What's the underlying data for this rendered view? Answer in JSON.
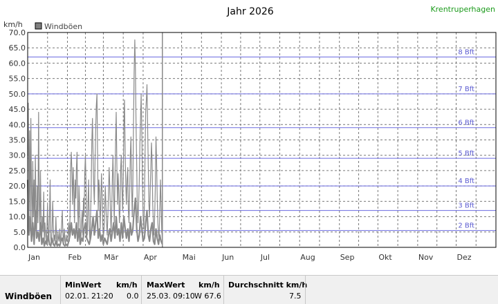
{
  "header": {
    "title": "Jahr 2026",
    "station": "Krentruperhagen"
  },
  "colors": {
    "series": "#8a8a8a",
    "bft_lines": "#6a6ae0",
    "grid": "#777777",
    "station": "#1a9a1a"
  },
  "chart_data": {
    "type": "line",
    "ylabel": "km/h",
    "ylim": [
      0,
      70
    ],
    "yticks": [
      "0.0",
      "5.0",
      "10.0",
      "15.0",
      "20.0",
      "25.0",
      "30.0",
      "35.0",
      "40.0",
      "45.0",
      "50.0",
      "55.0",
      "60.0",
      "65.0",
      "70.0"
    ],
    "months": [
      "Jan",
      "Feb",
      "Mär",
      "Apr",
      "Mai",
      "Jun",
      "Jul",
      "Aug",
      "Sep",
      "Okt",
      "Nov",
      "Dez"
    ],
    "grid": true,
    "legend": {
      "position": "top-left",
      "entries": [
        "Windböen"
      ]
    },
    "beaufort": [
      {
        "label": "2 Bft",
        "kmh": 5.5
      },
      {
        "label": "3 Bft",
        "kmh": 12
      },
      {
        "label": "4 Bft",
        "kmh": 20
      },
      {
        "label": "5 Bft",
        "kmh": 29
      },
      {
        "label": "6 Bft",
        "kmh": 39
      },
      {
        "label": "7 Bft",
        "kmh": 50
      },
      {
        "label": "8 Bft",
        "kmh": 62
      }
    ],
    "marker_day": 105,
    "series": [
      {
        "name": "Windböen",
        "gust_points": [
          [
            0,
            30
          ],
          [
            0.5,
            47
          ],
          [
            1,
            12
          ],
          [
            1.5,
            38
          ],
          [
            2,
            6
          ],
          [
            2.5,
            42
          ],
          [
            3,
            18
          ],
          [
            3.5,
            5
          ],
          [
            4,
            28
          ],
          [
            4.5,
            10
          ],
          [
            5,
            22
          ],
          [
            5.5,
            4
          ],
          [
            6,
            30
          ],
          [
            6.5,
            12
          ],
          [
            7,
            6
          ],
          [
            7.5,
            20
          ],
          [
            8,
            8
          ],
          [
            8.5,
            44
          ],
          [
            9,
            15
          ],
          [
            9.5,
            6
          ],
          [
            10,
            25
          ],
          [
            10.5,
            8
          ],
          [
            11,
            3
          ],
          [
            11.5,
            10
          ],
          [
            12,
            5
          ],
          [
            12.5,
            18
          ],
          [
            13,
            2
          ],
          [
            13.5,
            8
          ],
          [
            14,
            4
          ],
          [
            14.5,
            2
          ],
          [
            15,
            6
          ],
          [
            15.5,
            14
          ],
          [
            16,
            4
          ],
          [
            16.5,
            2
          ],
          [
            17,
            10
          ],
          [
            17.5,
            22
          ],
          [
            18,
            3
          ],
          [
            18.5,
            1
          ],
          [
            19,
            5
          ],
          [
            19.5,
            15
          ],
          [
            20,
            7
          ],
          [
            20.5,
            2
          ],
          [
            21,
            4
          ],
          [
            21.5,
            2
          ],
          [
            22,
            10
          ],
          [
            22.5,
            3
          ],
          [
            23,
            1
          ],
          [
            23.5,
            5
          ],
          [
            24,
            3
          ],
          [
            24.5,
            2
          ],
          [
            25,
            6
          ],
          [
            25.5,
            1
          ],
          [
            26,
            3
          ],
          [
            26.5,
            8
          ],
          [
            27,
            12
          ],
          [
            27.5,
            4
          ],
          [
            28,
            2
          ],
          [
            28.5,
            6
          ],
          [
            29,
            2
          ],
          [
            29.5,
            1
          ],
          [
            30,
            4
          ],
          [
            30.5,
            2
          ],
          [
            31,
            2
          ],
          [
            31.5,
            4
          ],
          [
            32,
            8
          ],
          [
            32.5,
            2
          ],
          [
            33,
            10
          ],
          [
            33.5,
            26
          ],
          [
            34,
            31
          ],
          [
            34.5,
            24
          ],
          [
            35,
            14
          ],
          [
            35.5,
            26
          ],
          [
            36,
            18
          ],
          [
            36.5,
            8
          ],
          [
            37,
            22
          ],
          [
            37.5,
            16
          ],
          [
            38,
            26
          ],
          [
            38.5,
            31
          ],
          [
            39,
            12
          ],
          [
            39.5,
            6
          ],
          [
            40,
            20
          ],
          [
            40.5,
            14
          ],
          [
            41,
            5
          ],
          [
            41.5,
            3
          ],
          [
            42,
            8
          ],
          [
            42.5,
            12
          ],
          [
            43,
            4
          ],
          [
            43.5,
            16
          ],
          [
            44,
            10
          ],
          [
            44.5,
            24
          ],
          [
            45,
            30
          ],
          [
            45.5,
            20
          ],
          [
            46,
            8
          ],
          [
            46.5,
            4
          ],
          [
            47,
            14
          ],
          [
            47.5,
            22
          ],
          [
            48,
            6
          ],
          [
            48.5,
            2
          ],
          [
            49,
            10
          ],
          [
            49.5,
            18
          ],
          [
            50,
            34
          ],
          [
            50.5,
            42
          ],
          [
            51,
            30
          ],
          [
            51.5,
            20
          ],
          [
            52,
            14
          ],
          [
            52.5,
            28
          ],
          [
            53,
            38
          ],
          [
            53.5,
            46
          ],
          [
            54,
            50
          ],
          [
            54.5,
            30
          ],
          [
            55,
            12
          ],
          [
            55.5,
            22
          ],
          [
            56,
            18
          ],
          [
            56.5,
            6
          ],
          [
            57,
            14
          ],
          [
            57.5,
            24
          ],
          [
            58,
            18
          ],
          [
            58.5,
            8
          ],
          [
            59,
            3
          ],
          [
            59.5,
            6
          ],
          [
            60,
            12
          ],
          [
            60.5,
            20
          ],
          [
            61,
            14
          ],
          [
            61.5,
            8
          ],
          [
            62,
            4
          ],
          [
            62.5,
            10
          ],
          [
            63,
            18
          ],
          [
            63.5,
            26
          ],
          [
            64,
            20
          ],
          [
            64.5,
            12
          ],
          [
            65,
            5
          ],
          [
            65.5,
            12
          ],
          [
            66,
            22
          ],
          [
            66.5,
            30
          ],
          [
            67,
            18
          ],
          [
            67.5,
            8
          ],
          [
            68,
            20
          ],
          [
            68.5,
            34
          ],
          [
            69,
            44
          ],
          [
            69.5,
            28
          ],
          [
            70,
            14
          ],
          [
            70.5,
            24
          ],
          [
            71,
            18
          ],
          [
            71.5,
            8
          ],
          [
            72,
            12
          ],
          [
            72.5,
            26
          ],
          [
            73,
            30
          ],
          [
            73.5,
            20
          ],
          [
            74,
            12
          ],
          [
            74.5,
            22
          ],
          [
            75,
            40
          ],
          [
            75.5,
            48
          ],
          [
            76,
            30
          ],
          [
            76.5,
            20
          ],
          [
            77,
            14
          ],
          [
            77.5,
            22
          ],
          [
            78,
            26
          ],
          [
            78.5,
            12
          ],
          [
            79,
            8
          ],
          [
            79.5,
            18
          ],
          [
            80,
            30
          ],
          [
            80.5,
            36
          ],
          [
            81,
            22
          ],
          [
            81.5,
            10
          ],
          [
            82,
            20
          ],
          [
            82.5,
            40
          ],
          [
            83,
            57
          ],
          [
            83.5,
            67.6
          ],
          [
            84,
            58
          ],
          [
            84.5,
            40
          ],
          [
            85,
            26
          ],
          [
            85.5,
            12
          ],
          [
            86,
            8
          ],
          [
            86.5,
            14
          ],
          [
            87,
            22
          ],
          [
            87.5,
            34
          ],
          [
            88,
            42
          ],
          [
            88.5,
            50
          ],
          [
            89,
            36
          ],
          [
            89.5,
            20
          ],
          [
            90,
            10
          ],
          [
            90.5,
            6
          ],
          [
            91,
            14
          ],
          [
            91.5,
            30
          ],
          [
            92,
            44
          ],
          [
            92.5,
            48
          ],
          [
            93,
            53
          ],
          [
            93.5,
            40
          ],
          [
            94,
            26
          ],
          [
            94.5,
            14
          ],
          [
            95,
            10
          ],
          [
            95.5,
            18
          ],
          [
            96,
            26
          ],
          [
            96.5,
            34
          ],
          [
            97,
            28
          ],
          [
            97.5,
            14
          ],
          [
            98,
            8
          ],
          [
            98.5,
            4
          ],
          [
            99,
            10
          ],
          [
            99.5,
            20
          ],
          [
            100,
            36
          ],
          [
            100.5,
            28
          ],
          [
            101,
            16
          ],
          [
            101.5,
            8
          ],
          [
            102,
            4
          ],
          [
            102.5,
            3
          ],
          [
            103,
            12
          ],
          [
            103.5,
            22
          ],
          [
            104,
            14
          ],
          [
            104.5,
            6
          ],
          [
            105,
            2
          ]
        ],
        "base_points": [
          [
            0,
            22
          ],
          [
            1,
            4
          ],
          [
            2,
            10
          ],
          [
            3,
            2
          ],
          [
            4,
            8
          ],
          [
            5,
            1
          ],
          [
            6,
            12
          ],
          [
            7,
            3
          ],
          [
            8,
            5
          ],
          [
            9,
            2
          ],
          [
            10,
            8
          ],
          [
            11,
            1
          ],
          [
            12,
            3
          ],
          [
            13,
            0.5
          ],
          [
            14,
            2
          ],
          [
            15,
            1
          ],
          [
            16,
            4
          ],
          [
            17,
            1
          ],
          [
            18,
            0.5
          ],
          [
            19,
            3
          ],
          [
            20,
            1
          ],
          [
            21,
            0.5
          ],
          [
            22,
            2
          ],
          [
            23,
            0.5
          ],
          [
            24,
            1
          ],
          [
            25,
            0.5
          ],
          [
            26,
            2
          ],
          [
            27,
            3
          ],
          [
            28,
            1
          ],
          [
            29,
            0.5
          ],
          [
            30,
            1
          ],
          [
            31,
            0.5
          ],
          [
            32,
            2
          ],
          [
            33,
            4
          ],
          [
            34,
            8
          ],
          [
            35,
            4
          ],
          [
            36,
            6
          ],
          [
            37,
            3
          ],
          [
            38,
            8
          ],
          [
            39,
            2
          ],
          [
            40,
            6
          ],
          [
            41,
            1
          ],
          [
            42,
            3
          ],
          [
            43,
            2
          ],
          [
            44,
            6
          ],
          [
            45,
            8
          ],
          [
            46,
            3
          ],
          [
            47,
            2
          ],
          [
            48,
            1
          ],
          [
            49,
            3
          ],
          [
            50,
            6
          ],
          [
            51,
            10
          ],
          [
            52,
            4
          ],
          [
            53,
            8
          ],
          [
            54,
            12
          ],
          [
            55,
            3
          ],
          [
            56,
            6
          ],
          [
            57,
            2
          ],
          [
            58,
            4
          ],
          [
            59,
            1
          ],
          [
            60,
            3
          ],
          [
            61,
            2
          ],
          [
            62,
            1
          ],
          [
            63,
            4
          ],
          [
            64,
            6
          ],
          [
            65,
            2
          ],
          [
            66,
            5
          ],
          [
            67,
            8
          ],
          [
            68,
            3
          ],
          [
            69,
            10
          ],
          [
            70,
            4
          ],
          [
            71,
            6
          ],
          [
            72,
            2
          ],
          [
            73,
            8
          ],
          [
            74,
            3
          ],
          [
            75,
            10
          ],
          [
            76,
            6
          ],
          [
            77,
            3
          ],
          [
            78,
            6
          ],
          [
            79,
            2
          ],
          [
            80,
            8
          ],
          [
            81,
            4
          ],
          [
            82,
            6
          ],
          [
            83,
            12
          ],
          [
            84,
            16
          ],
          [
            85,
            6
          ],
          [
            86,
            2
          ],
          [
            87,
            4
          ],
          [
            88,
            10
          ],
          [
            89,
            6
          ],
          [
            90,
            2
          ],
          [
            91,
            3
          ],
          [
            92,
            8
          ],
          [
            93,
            12
          ],
          [
            94,
            4
          ],
          [
            95,
            2
          ],
          [
            96,
            6
          ],
          [
            97,
            8
          ],
          [
            98,
            2
          ],
          [
            99,
            1
          ],
          [
            100,
            6
          ],
          [
            101,
            3
          ],
          [
            102,
            1
          ],
          [
            103,
            4
          ],
          [
            104,
            2
          ],
          [
            105,
            1
          ]
        ]
      }
    ]
  },
  "stats": {
    "row_label": "Windböen",
    "min_header": "MinWert",
    "min_unit": "km/h",
    "min_date": "02.01.",
    "min_time": "21:20",
    "min_value": "0.0",
    "max_header": "MaxWert",
    "max_unit": "km/h",
    "max_date": "25.03.",
    "max_time": "09:10",
    "max_value": "W 67.6",
    "avg_header": "Durchschnitt km/h",
    "avg_value": "7.5"
  }
}
